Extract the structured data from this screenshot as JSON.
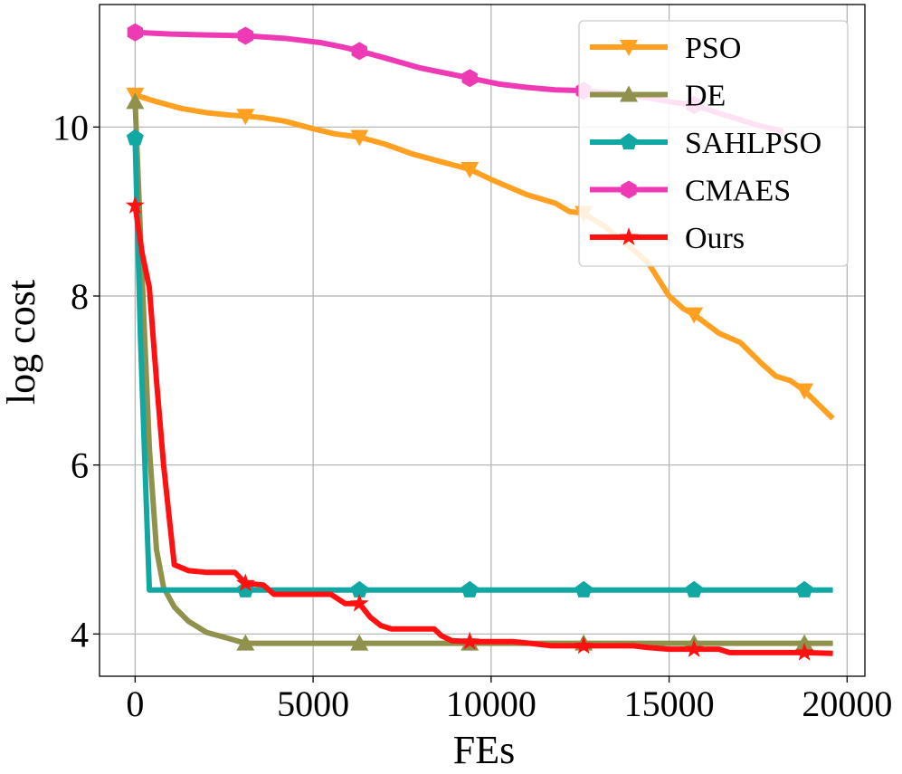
{
  "chart_data": {
    "type": "line",
    "title": "",
    "xlabel": "FEs",
    "ylabel": "log cost",
    "xlim": [
      -1000,
      20500
    ],
    "ylim": [
      3.5,
      11.45
    ],
    "xticks": [
      0,
      5000,
      10000,
      15000,
      20000
    ],
    "xtick_labels": [
      "0",
      "5000",
      "10000",
      "15000",
      "20000"
    ],
    "yticks": [
      4,
      6,
      8,
      10
    ],
    "ytick_labels": [
      "4",
      "6",
      "8",
      "10"
    ],
    "grid": true,
    "legend_position": "top-right",
    "series": [
      {
        "name": "PSO",
        "color": "#ffa020",
        "marker": "triangle-down",
        "x": [
          0,
          600,
          1300,
          2000,
          2700,
          3100,
          3600,
          4200,
          5000,
          5600,
          6300,
          7000,
          7800,
          8500,
          9400,
          10000,
          11000,
          11800,
          12200,
          12600,
          13200,
          13700,
          14400,
          15000,
          15400,
          15700,
          16400,
          17000,
          17600,
          18000,
          18400,
          18800,
          19600
        ],
        "y": [
          10.38,
          10.3,
          10.22,
          10.17,
          10.14,
          10.13,
          10.11,
          10.07,
          9.98,
          9.92,
          9.88,
          9.8,
          9.68,
          9.6,
          9.5,
          9.38,
          9.2,
          9.1,
          9.0,
          8.98,
          8.82,
          8.65,
          8.4,
          8.0,
          7.85,
          7.78,
          7.56,
          7.45,
          7.2,
          7.05,
          7.0,
          6.88,
          6.55
        ]
      },
      {
        "name": "DE",
        "color": "#8f914c",
        "marker": "triangle-up",
        "x": [
          0,
          200,
          400,
          600,
          800,
          1100,
          1500,
          2000,
          2600,
          3100,
          4000,
          6300,
          9400,
          12600,
          15700,
          18800,
          19600
        ],
        "y": [
          10.3,
          8.2,
          6.2,
          5.0,
          4.55,
          4.32,
          4.15,
          4.02,
          3.95,
          3.89,
          3.89,
          3.89,
          3.89,
          3.89,
          3.89,
          3.89,
          3.89
        ]
      },
      {
        "name": "SAHLPSO",
        "color": "#11a8a4",
        "marker": "pentagon",
        "x": [
          0,
          150,
          400,
          3100,
          6300,
          9400,
          12600,
          15700,
          18800,
          19600
        ],
        "y": [
          9.87,
          7.5,
          4.52,
          4.52,
          4.52,
          4.52,
          4.52,
          4.52,
          4.52,
          4.52
        ]
      },
      {
        "name": "CMAES",
        "color": "#ee3ab4",
        "marker": "hexagon",
        "x": [
          0,
          1000,
          2000,
          3100,
          4200,
          5200,
          5800,
          6300,
          7000,
          8000,
          9400,
          10200,
          11000,
          11800,
          12600,
          13500,
          14500,
          15000,
          15700,
          16500,
          17500,
          18200
        ],
        "y": [
          11.12,
          11.1,
          11.09,
          11.08,
          11.05,
          11.0,
          10.95,
          10.9,
          10.82,
          10.7,
          10.58,
          10.51,
          10.47,
          10.44,
          10.43,
          10.4,
          10.34,
          10.3,
          10.26,
          10.15,
          10.02,
          9.95
        ]
      },
      {
        "name": "Ours",
        "color": "#ff1111",
        "marker": "star",
        "x": [
          0,
          200,
          400,
          600,
          800,
          1100,
          1500,
          2000,
          2800,
          3100,
          3600,
          3900,
          5500,
          5900,
          6300,
          6600,
          6900,
          7200,
          8400,
          8600,
          8900,
          9400,
          10600,
          11100,
          11700,
          12600,
          14000,
          14400,
          15000,
          15700,
          16400,
          16700,
          18800,
          19600
        ],
        "y": [
          9.07,
          8.5,
          8.1,
          7.0,
          6.0,
          4.82,
          4.75,
          4.73,
          4.73,
          4.6,
          4.58,
          4.47,
          4.47,
          4.36,
          4.36,
          4.2,
          4.1,
          4.06,
          4.06,
          3.98,
          3.92,
          3.91,
          3.91,
          3.89,
          3.86,
          3.86,
          3.86,
          3.84,
          3.82,
          3.82,
          3.82,
          3.78,
          3.78,
          3.77
        ]
      }
    ]
  }
}
